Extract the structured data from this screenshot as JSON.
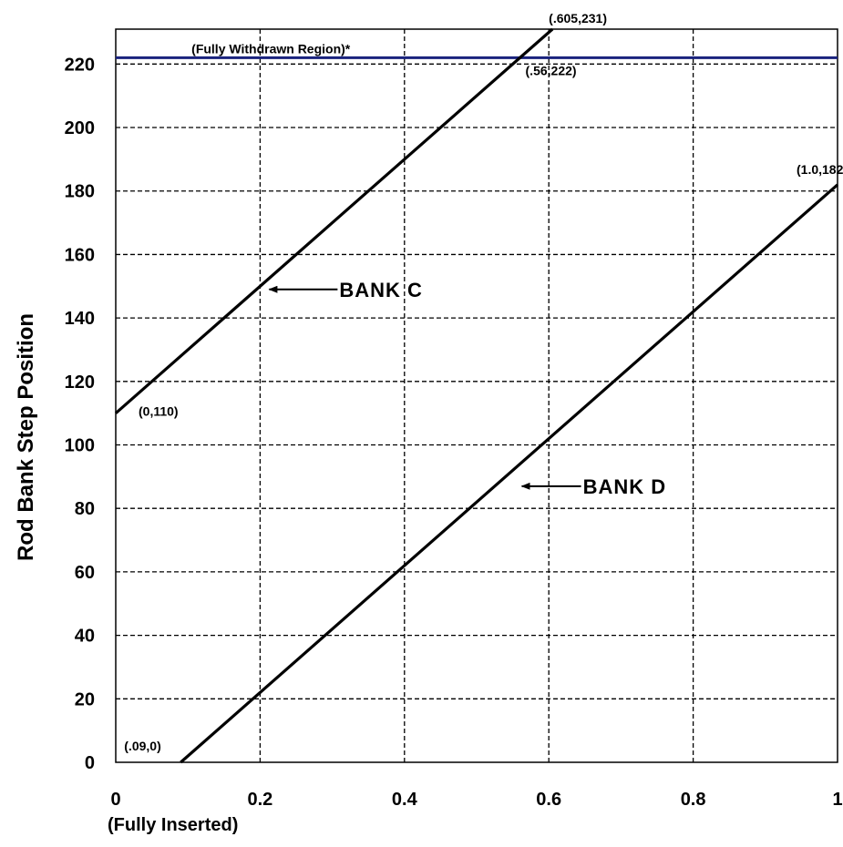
{
  "chart_data": {
    "type": "line",
    "title": "",
    "xlabel": "",
    "xlabel_note": "(Fully Inserted)",
    "ylabel": "Rod Bank Step Position",
    "xlim": [
      0,
      1
    ],
    "ylim": [
      0,
      231
    ],
    "x_ticks": [
      "0",
      "0.2",
      "0.4",
      "0.6",
      "0.8",
      "1"
    ],
    "y_ticks": [
      "0",
      "20",
      "40",
      "60",
      "80",
      "100",
      "120",
      "140",
      "160",
      "180",
      "200",
      "220"
    ],
    "grid": true,
    "series": [
      {
        "name": "BANK C",
        "points": [
          [
            0,
            110
          ],
          [
            0.605,
            231
          ]
        ]
      },
      {
        "name": "BANK D",
        "points": [
          [
            0.09,
            0
          ],
          [
            1.0,
            182
          ]
        ]
      }
    ],
    "reference_line": {
      "label": "(Fully Withdrawn Region)*",
      "y": 222,
      "color": "#1a237e"
    },
    "point_labels": [
      {
        "text": "(.605,231)",
        "x": 0.605,
        "y": 231
      },
      {
        "text": "(.56,222)",
        "x": 0.56,
        "y": 222
      },
      {
        "text": "(1.0,182)",
        "x": 1.0,
        "y": 182
      },
      {
        "text": "(0,110)",
        "x": 0,
        "y": 110
      },
      {
        "text": "(.09,0)",
        "x": 0.09,
        "y": 0
      }
    ],
    "annotations": [
      {
        "text": "BANK C",
        "arrow_to": [
          0.2,
          149
        ]
      },
      {
        "text": "BANK D",
        "arrow_to": [
          0.55,
          87
        ]
      }
    ]
  }
}
